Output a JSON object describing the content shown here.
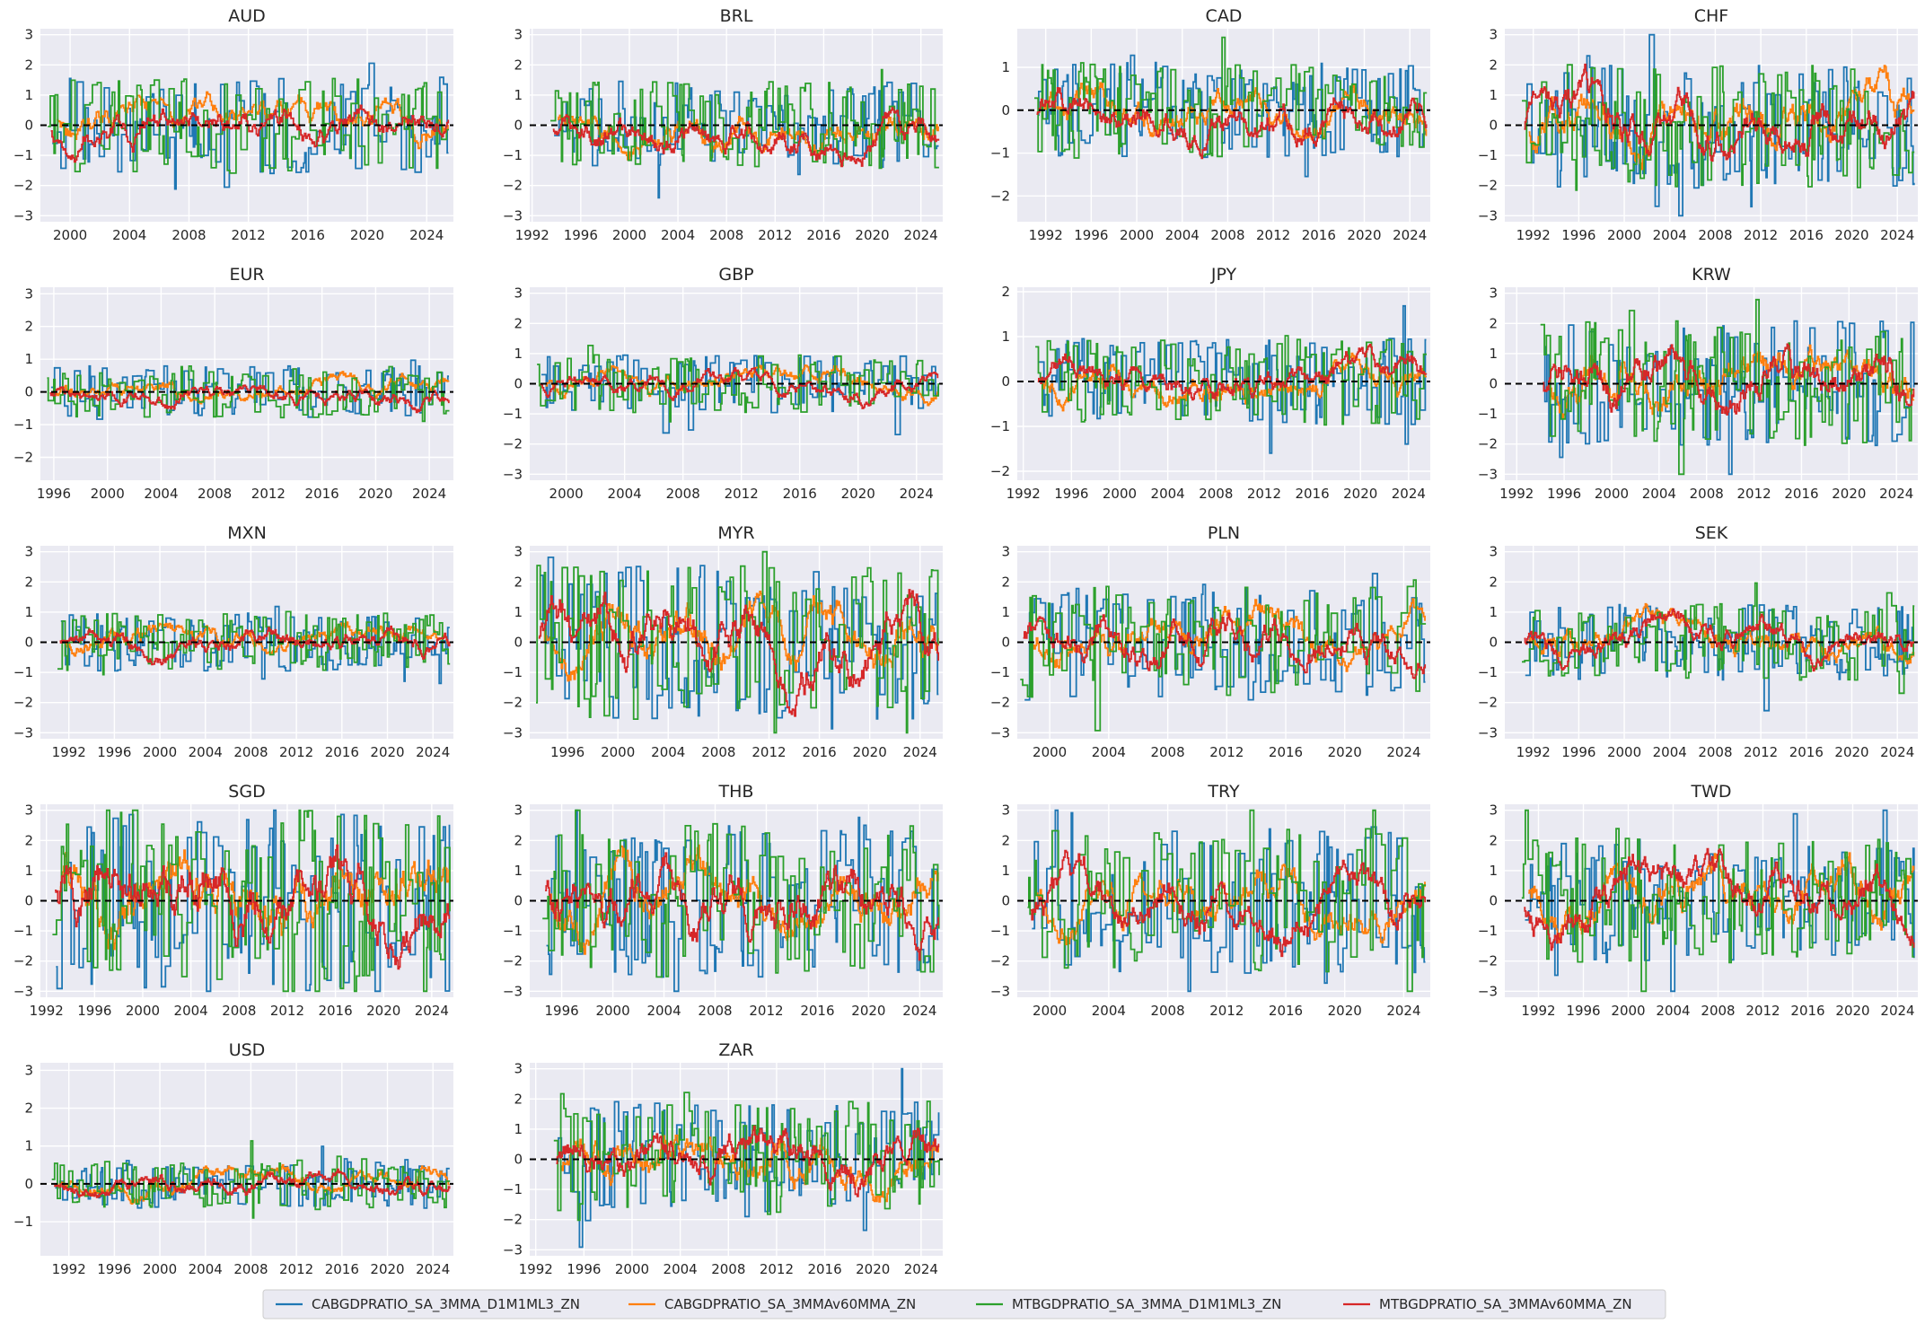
{
  "chart_data": {
    "type": "line",
    "layout": "small-multiples",
    "grid": true,
    "legend_placement": "bottom-center",
    "series_names": [
      "CABGDPRATIO_SA_3MMA_D1M1ML3_ZN",
      "CABGDPRATIO_SA_3MMAv60MMA_ZN",
      "MTBGDPRATIO_SA_3MMA_D1M1ML3_ZN",
      "MTBGDPRATIO_SA_3MMAv60MMA_ZN"
    ],
    "series_colors": [
      "#1f77b4",
      "#ff7f0e",
      "#2ca02c",
      "#d62728"
    ],
    "reference_line": {
      "y": 0,
      "style": "dashed",
      "color": "#000000"
    },
    "panels": [
      {
        "title": "AUD",
        "xlim": [
          1998.0,
          2025.8
        ],
        "ylim": [
          -3.2,
          3.2
        ],
        "xticks": [
          2000,
          2004,
          2008,
          2012,
          2016,
          2020,
          2024
        ],
        "yticks": [
          -3,
          -2,
          -1,
          0,
          1,
          2,
          3
        ],
        "start": 1998.5,
        "end": 2025.5,
        "amp": 1.0
      },
      {
        "title": "BRL",
        "xlim": [
          1991.8,
          2025.8
        ],
        "ylim": [
          -3.2,
          3.2
        ],
        "xticks": [
          1992,
          1996,
          2000,
          2004,
          2008,
          2012,
          2016,
          2020,
          2024
        ],
        "yticks": [
          -3,
          -2,
          -1,
          0,
          1,
          2,
          3
        ],
        "start": 1993.5,
        "end": 2025.5,
        "amp": 0.9
      },
      {
        "title": "CAD",
        "xlim": [
          1989.5,
          2025.8
        ],
        "ylim": [
          -2.6,
          1.9
        ],
        "xticks": [
          1992,
          1996,
          2000,
          2004,
          2008,
          2012,
          2016,
          2020,
          2024
        ],
        "yticks": [
          -2,
          -1,
          0,
          1
        ],
        "start": 1991.0,
        "end": 2025.5,
        "amp": 0.7
      },
      {
        "title": "CHF",
        "xlim": [
          1989.5,
          2025.8
        ],
        "ylim": [
          -3.2,
          3.2
        ],
        "xticks": [
          1992,
          1996,
          2000,
          2004,
          2008,
          2012,
          2016,
          2020,
          2024
        ],
        "yticks": [
          -3,
          -2,
          -1,
          0,
          1,
          2,
          3
        ],
        "start": 1991.0,
        "end": 2025.5,
        "amp": 1.3
      },
      {
        "title": "EUR",
        "xlim": [
          1995.0,
          2025.8
        ],
        "ylim": [
          -2.7,
          3.2
        ],
        "xticks": [
          1996,
          2000,
          2004,
          2008,
          2012,
          2016,
          2020,
          2024
        ],
        "yticks": [
          -2,
          -1,
          0,
          1,
          2,
          3
        ],
        "start": 1995.5,
        "end": 2025.5,
        "amp": 0.5
      },
      {
        "title": "GBP",
        "xlim": [
          1997.5,
          2025.8
        ],
        "ylim": [
          -3.2,
          3.2
        ],
        "xticks": [
          2000,
          2004,
          2008,
          2012,
          2016,
          2020,
          2024
        ],
        "yticks": [
          -3,
          -2,
          -1,
          0,
          1,
          2,
          3
        ],
        "start": 1998.0,
        "end": 2025.5,
        "amp": 0.6
      },
      {
        "title": "JPY",
        "xlim": [
          1991.5,
          2025.8
        ],
        "ylim": [
          -2.2,
          2.1
        ],
        "xticks": [
          1992,
          1996,
          2000,
          2004,
          2008,
          2012,
          2016,
          2020,
          2024
        ],
        "yticks": [
          -2,
          -1,
          0,
          1,
          2
        ],
        "start": 1993.0,
        "end": 2025.5,
        "amp": 0.6
      },
      {
        "title": "KRW",
        "xlim": [
          1991.0,
          2025.8
        ],
        "ylim": [
          -3.2,
          3.2
        ],
        "xticks": [
          1992,
          1996,
          2000,
          2004,
          2008,
          2012,
          2016,
          2020,
          2024
        ],
        "yticks": [
          -3,
          -2,
          -1,
          0,
          1,
          2,
          3
        ],
        "start": 1994.0,
        "end": 2025.5,
        "amp": 1.3
      },
      {
        "title": "MXN",
        "xlim": [
          1989.5,
          2025.8
        ],
        "ylim": [
          -3.2,
          3.2
        ],
        "xticks": [
          1992,
          1996,
          2000,
          2004,
          2008,
          2012,
          2016,
          2020,
          2024
        ],
        "yticks": [
          -3,
          -2,
          -1,
          0,
          1,
          2,
          3
        ],
        "start": 1991.0,
        "end": 2025.5,
        "amp": 0.6
      },
      {
        "title": "MYR",
        "xlim": [
          1993.0,
          2025.8
        ],
        "ylim": [
          -3.2,
          3.2
        ],
        "xticks": [
          1996,
          2000,
          2004,
          2008,
          2012,
          2016,
          2020,
          2024
        ],
        "yticks": [
          -3,
          -2,
          -1,
          0,
          1,
          2,
          3
        ],
        "start": 1993.5,
        "end": 2025.5,
        "amp": 1.6
      },
      {
        "title": "PLN",
        "xlim": [
          1997.8,
          2025.8
        ],
        "ylim": [
          -3.2,
          3.2
        ],
        "xticks": [
          2000,
          2004,
          2008,
          2012,
          2016,
          2020,
          2024
        ],
        "yticks": [
          -3,
          -2,
          -1,
          0,
          1,
          2,
          3
        ],
        "start": 1998.0,
        "end": 2025.5,
        "amp": 1.2
      },
      {
        "title": "SEK",
        "xlim": [
          1989.5,
          2025.8
        ],
        "ylim": [
          -3.2,
          3.2
        ],
        "xticks": [
          1992,
          1996,
          2000,
          2004,
          2008,
          2012,
          2016,
          2020,
          2024
        ],
        "yticks": [
          -3,
          -2,
          -1,
          0,
          1,
          2,
          3
        ],
        "start": 1991.0,
        "end": 2025.5,
        "amp": 0.8
      },
      {
        "title": "SGD",
        "xlim": [
          1991.5,
          2025.8
        ],
        "ylim": [
          -3.2,
          3.2
        ],
        "xticks": [
          1992,
          1996,
          2000,
          2004,
          2008,
          2012,
          2016,
          2020,
          2024
        ],
        "yticks": [
          -3,
          -2,
          -1,
          0,
          1,
          2,
          3
        ],
        "start": 1992.5,
        "end": 2025.5,
        "amp": 1.9
      },
      {
        "title": "THB",
        "xlim": [
          1993.5,
          2025.8
        ],
        "ylim": [
          -3.2,
          3.2
        ],
        "xticks": [
          1996,
          2000,
          2004,
          2008,
          2012,
          2016,
          2020,
          2024
        ],
        "yticks": [
          -3,
          -2,
          -1,
          0,
          1,
          2,
          3
        ],
        "start": 1994.5,
        "end": 2025.5,
        "amp": 1.6
      },
      {
        "title": "TRY",
        "xlim": [
          1997.8,
          2025.8
        ],
        "ylim": [
          -3.2,
          3.2
        ],
        "xticks": [
          2000,
          2004,
          2008,
          2012,
          2016,
          2020,
          2024
        ],
        "yticks": [
          -3,
          -2,
          -1,
          0,
          1,
          2,
          3
        ],
        "start": 1998.5,
        "end": 2025.5,
        "amp": 1.5
      },
      {
        "title": "TWD",
        "xlim": [
          1989.0,
          2025.8
        ],
        "ylim": [
          -3.2,
          3.2
        ],
        "xticks": [
          1992,
          1996,
          2000,
          2004,
          2008,
          2012,
          2016,
          2020,
          2024
        ],
        "yticks": [
          -3,
          -2,
          -1,
          0,
          1,
          2,
          3
        ],
        "start": 1990.5,
        "end": 2025.5,
        "amp": 1.3
      },
      {
        "title": "USD",
        "xlim": [
          1989.5,
          2025.8
        ],
        "ylim": [
          -1.9,
          3.2
        ],
        "xticks": [
          1992,
          1996,
          2000,
          2004,
          2008,
          2012,
          2016,
          2020,
          2024
        ],
        "yticks": [
          -1,
          0,
          1,
          2,
          3
        ],
        "start": 1990.5,
        "end": 2025.5,
        "amp": 0.4
      },
      {
        "title": "ZAR",
        "xlim": [
          1991.5,
          2025.8
        ],
        "ylim": [
          -3.2,
          3.2
        ],
        "xticks": [
          1992,
          1996,
          2000,
          2004,
          2008,
          2012,
          2016,
          2020,
          2024
        ],
        "yticks": [
          -3,
          -2,
          -1,
          0,
          1,
          2,
          3
        ],
        "start": 1993.5,
        "end": 2025.5,
        "amp": 1.2
      }
    ]
  }
}
